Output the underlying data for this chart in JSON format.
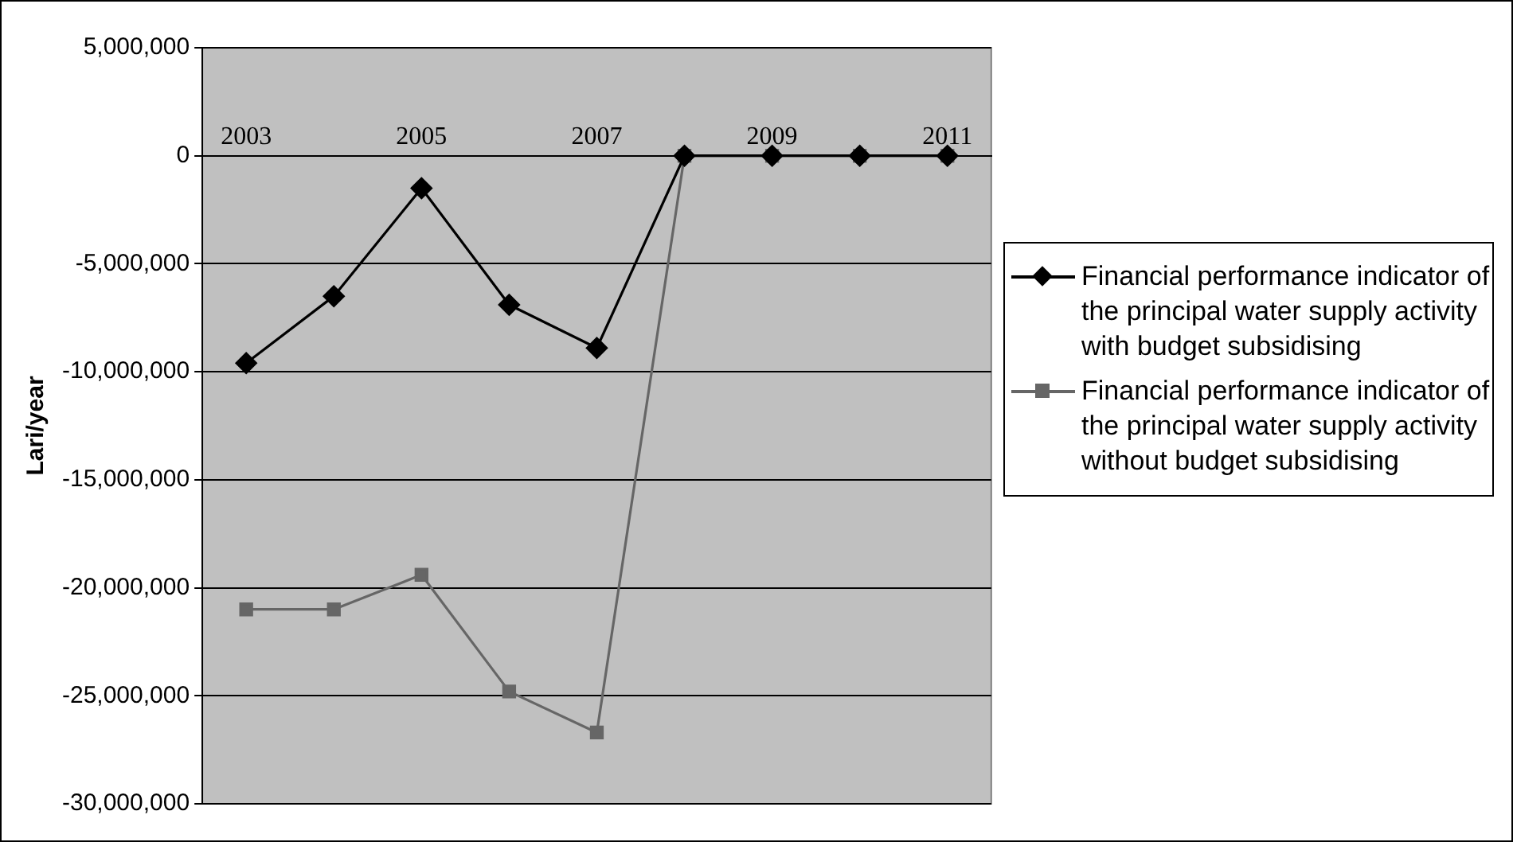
{
  "chart_data": {
    "type": "line",
    "ylabel": "Lari/year",
    "categories": [
      "2003",
      null,
      "2005",
      null,
      "2007",
      null,
      "2009",
      null,
      "2011"
    ],
    "series": [
      {
        "name": "Financial performance indicator of the principal water supply activity with budget subsidising",
        "color": "#000000",
        "marker": "diamond",
        "values": [
          -9600000,
          -6500000,
          -1500000,
          -6900000,
          -8900000,
          0,
          0,
          0,
          0
        ]
      },
      {
        "name": "Financial performance indicator of the principal water supply activity without budget subsidising",
        "color": "#666666",
        "marker": "square",
        "values": [
          -21000000,
          -21000000,
          -19400000,
          -24800000,
          -26700000,
          0,
          0,
          0,
          0
        ]
      }
    ],
    "ylim": [
      -30000000,
      5000000
    ],
    "yticks": [
      {
        "value": -30000000,
        "label": "-30,000,000"
      },
      {
        "value": -25000000,
        "label": "-25,000,000"
      },
      {
        "value": -20000000,
        "label": "-20,000,000"
      },
      {
        "value": -15000000,
        "label": "-15,000,000"
      },
      {
        "value": -10000000,
        "label": "-10,000,000"
      },
      {
        "value": -5000000,
        "label": "-5,000,000"
      },
      0,
      {
        "value": 5000000,
        "label": "5,000,000"
      }
    ],
    "grid": "y",
    "legend": "right",
    "line_style": "solid"
  }
}
